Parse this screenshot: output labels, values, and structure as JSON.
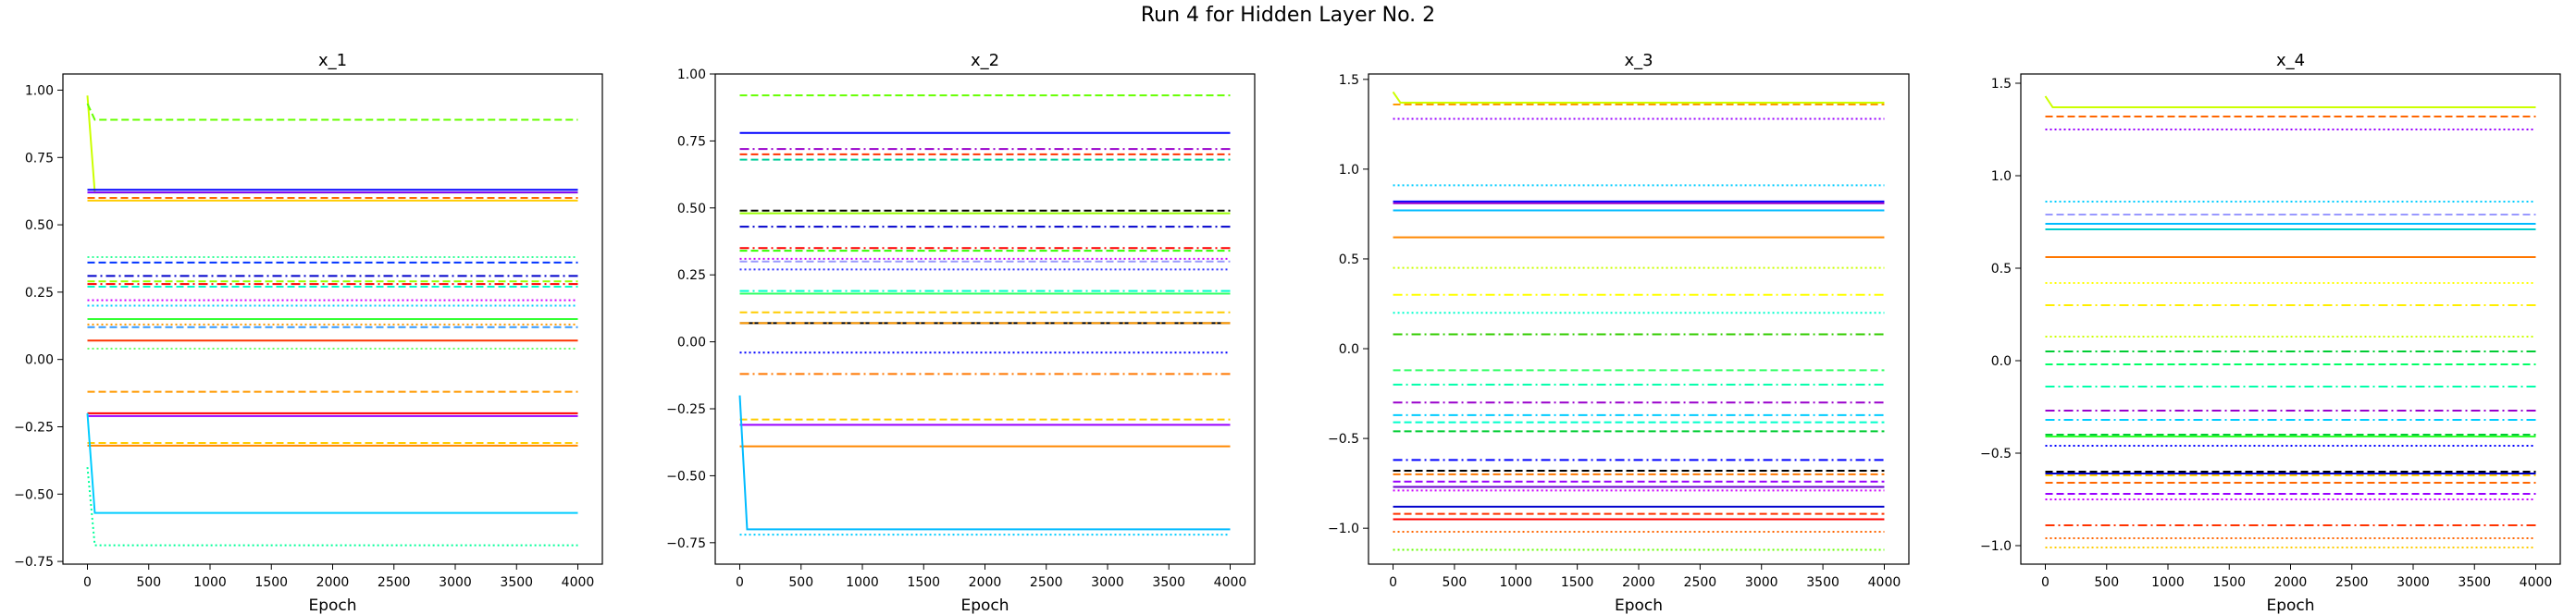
{
  "figure": {
    "suptitle": "Run 4 for Hidden Layer No. 2"
  },
  "chart_data": [
    {
      "type": "line",
      "title": "x_1",
      "xlabel": "Epoch",
      "ylabel": "",
      "xlim": [
        -200,
        4200
      ],
      "ylim": [
        -0.76,
        1.06
      ],
      "xticks": [
        0,
        500,
        1000,
        1500,
        2000,
        2500,
        3000,
        3500,
        4000
      ],
      "yticks": [
        -0.75,
        -0.5,
        -0.25,
        0.0,
        0.25,
        0.5,
        0.75,
        1.0
      ],
      "ytick_labels": [
        "−0.75",
        "−0.50",
        "−0.25",
        "0.00",
        "0.25",
        "0.50",
        "0.75",
        "1.00"
      ],
      "grid": false,
      "series": [
        {
          "color": "#ccff00",
          "dash": "solid",
          "start": 0.98,
          "value": 0.62
        },
        {
          "color": "#66ff00",
          "dash": "dashed",
          "start": 0.95,
          "value": 0.89
        },
        {
          "color": "#0000ff",
          "dash": "solid",
          "start": 0.63,
          "value": 0.63
        },
        {
          "color": "#7f00ff",
          "dash": "solid",
          "start": 0.62,
          "value": 0.62
        },
        {
          "color": "#ff6600",
          "dash": "dashed",
          "start": 0.6,
          "value": 0.6
        },
        {
          "color": "#ffcc00",
          "dash": "solid",
          "start": 0.59,
          "value": 0.59
        },
        {
          "color": "#33ff99",
          "dash": "dotted",
          "start": 0.38,
          "value": 0.38
        },
        {
          "color": "#0033ff",
          "dash": "dashed",
          "start": 0.36,
          "value": 0.36
        },
        {
          "color": "#0000cc",
          "dash": "dashdot",
          "start": 0.31,
          "value": 0.31
        },
        {
          "color": "#99ff00",
          "dash": "dashed",
          "start": 0.29,
          "value": 0.29
        },
        {
          "color": "#ff0000",
          "dash": "dashdot",
          "start": 0.28,
          "value": 0.28
        },
        {
          "color": "#00ffcc",
          "dash": "dashed",
          "start": 0.27,
          "value": 0.27
        },
        {
          "color": "#cc00ff",
          "dash": "dotted",
          "start": 0.22,
          "value": 0.22
        },
        {
          "color": "#00ccff",
          "dash": "dotted",
          "start": 0.2,
          "value": 0.2
        },
        {
          "color": "#33ff33",
          "dash": "solid",
          "start": 0.15,
          "value": 0.15
        },
        {
          "color": "#ff9900",
          "dash": "dotted",
          "start": 0.13,
          "value": 0.13
        },
        {
          "color": "#3399ff",
          "dash": "dashed",
          "start": 0.12,
          "value": 0.12
        },
        {
          "color": "#ff3300",
          "dash": "solid",
          "start": 0.07,
          "value": 0.07
        },
        {
          "color": "#66ff66",
          "dash": "dotted",
          "start": 0.04,
          "value": 0.04
        },
        {
          "color": "#ff9900",
          "dash": "dashed",
          "start": -0.12,
          "value": -0.12
        },
        {
          "color": "#ff0000",
          "dash": "solid",
          "start": -0.2,
          "value": -0.2
        },
        {
          "color": "#9900ff",
          "dash": "solid",
          "start": -0.21,
          "value": -0.21
        },
        {
          "color": "#ffcc00",
          "dash": "dashed",
          "start": -0.31,
          "value": -0.31
        },
        {
          "color": "#ff8800",
          "dash": "solid",
          "start": -0.32,
          "value": -0.32
        },
        {
          "color": "#00ccff",
          "dash": "solid",
          "start": -0.2,
          "value": -0.57
        },
        {
          "color": "#00ff99",
          "dash": "dotted",
          "start": -0.4,
          "value": -0.69
        }
      ]
    },
    {
      "type": "line",
      "title": "x_2",
      "xlabel": "Epoch",
      "ylabel": "",
      "xlim": [
        -200,
        4200
      ],
      "ylim": [
        -0.83,
        1.0
      ],
      "xticks": [
        0,
        500,
        1000,
        1500,
        2000,
        2500,
        3000,
        3500,
        4000
      ],
      "yticks": [
        -0.75,
        -0.5,
        -0.25,
        0.0,
        0.25,
        0.5,
        0.75,
        1.0
      ],
      "ytick_labels": [
        "−0.75",
        "−0.50",
        "−0.25",
        "0.00",
        "0.25",
        "0.50",
        "0.75",
        "1.00"
      ],
      "grid": false,
      "series": [
        {
          "color": "#66ff00",
          "dash": "dashed",
          "start": 0.92,
          "value": 0.92
        },
        {
          "color": "#0000ff",
          "dash": "solid",
          "start": 0.78,
          "value": 0.78
        },
        {
          "color": "#9900cc",
          "dash": "dashdot",
          "start": 0.72,
          "value": 0.72
        },
        {
          "color": "#ff3300",
          "dash": "dashed",
          "start": 0.7,
          "value": 0.7
        },
        {
          "color": "#00cc99",
          "dash": "dashed",
          "start": 0.68,
          "value": 0.68
        },
        {
          "color": "#000000",
          "dash": "dashed",
          "start": 0.49,
          "value": 0.49
        },
        {
          "color": "#99ff00",
          "dash": "solid",
          "start": 0.48,
          "value": 0.48
        },
        {
          "color": "#0000cc",
          "dash": "dashdot",
          "start": 0.43,
          "value": 0.43
        },
        {
          "color": "#ff0000",
          "dash": "dashdot",
          "start": 0.35,
          "value": 0.35
        },
        {
          "color": "#33ff00",
          "dash": "dashed",
          "start": 0.34,
          "value": 0.34
        },
        {
          "color": "#cc00ff",
          "dash": "dotted",
          "start": 0.31,
          "value": 0.31
        },
        {
          "color": "#9999ff",
          "dash": "dashed",
          "start": 0.3,
          "value": 0.3
        },
        {
          "color": "#3333ff",
          "dash": "dotted",
          "start": 0.27,
          "value": 0.27
        },
        {
          "color": "#00ffcc",
          "dash": "dashdot",
          "start": 0.19,
          "value": 0.19
        },
        {
          "color": "#33ff66",
          "dash": "solid",
          "start": 0.18,
          "value": 0.18
        },
        {
          "color": "#ffcc00",
          "dash": "dashed",
          "start": 0.11,
          "value": 0.11
        },
        {
          "color": "#000000",
          "dash": "solid",
          "start": 0.07,
          "value": 0.07
        },
        {
          "color": "#ff9900",
          "dash": "dashdot",
          "start": 0.07,
          "value": 0.07
        },
        {
          "color": "#0000ff",
          "dash": "dotted",
          "start": -0.04,
          "value": -0.04
        },
        {
          "color": "#ff7700",
          "dash": "dashdot",
          "start": -0.12,
          "value": -0.12
        },
        {
          "color": "#ffcc00",
          "dash": "dashed",
          "start": -0.29,
          "value": -0.29
        },
        {
          "color": "#9900ff",
          "dash": "solid",
          "start": -0.31,
          "value": -0.31
        },
        {
          "color": "#ff8800",
          "dash": "solid",
          "start": -0.39,
          "value": -0.39
        },
        {
          "color": "#00bbff",
          "dash": "solid",
          "start": -0.2,
          "value": -0.7
        },
        {
          "color": "#00ccff",
          "dash": "dotted",
          "start": -0.72,
          "value": -0.72
        }
      ]
    },
    {
      "type": "line",
      "title": "x_3",
      "xlabel": "Epoch",
      "ylabel": "",
      "xlim": [
        -200,
        4200
      ],
      "ylim": [
        -1.2,
        1.53
      ],
      "xticks": [
        0,
        500,
        1000,
        1500,
        2000,
        2500,
        3000,
        3500,
        4000
      ],
      "yticks": [
        -1.0,
        -0.5,
        0.0,
        0.5,
        1.0,
        1.5
      ],
      "ytick_labels": [
        "−1.0",
        "−0.5",
        "0.0",
        "0.5",
        "1.0",
        "1.5"
      ],
      "grid": false,
      "series": [
        {
          "color": "#ccff00",
          "dash": "solid",
          "start": 1.43,
          "value": 1.37
        },
        {
          "color": "#ff9900",
          "dash": "dashed",
          "start": 1.36,
          "value": 1.36
        },
        {
          "color": "#9900ff",
          "dash": "dotted",
          "start": 1.28,
          "value": 1.28
        },
        {
          "color": "#00ccff",
          "dash": "dotted",
          "start": 0.91,
          "value": 0.91
        },
        {
          "color": "#0000ff",
          "dash": "solid",
          "start": 0.82,
          "value": 0.82
        },
        {
          "color": "#9900cc",
          "dash": "solid",
          "start": 0.81,
          "value": 0.81
        },
        {
          "color": "#00bbff",
          "dash": "solid",
          "start": 0.77,
          "value": 0.77
        },
        {
          "color": "#ff8800",
          "dash": "solid",
          "start": 0.62,
          "value": 0.62
        },
        {
          "color": "#ccff00",
          "dash": "dotted",
          "start": 0.45,
          "value": 0.45
        },
        {
          "color": "#ffff00",
          "dash": "dashdot",
          "start": 0.3,
          "value": 0.3
        },
        {
          "color": "#00ffcc",
          "dash": "dotted",
          "start": 0.2,
          "value": 0.2
        },
        {
          "color": "#33cc00",
          "dash": "dashdot",
          "start": 0.08,
          "value": 0.08
        },
        {
          "color": "#33ff66",
          "dash": "dashed",
          "start": -0.12,
          "value": -0.12
        },
        {
          "color": "#00ffaa",
          "dash": "dashdot",
          "start": -0.2,
          "value": -0.2
        },
        {
          "color": "#9900cc",
          "dash": "dashdot",
          "start": -0.3,
          "value": -0.3
        },
        {
          "color": "#00ccff",
          "dash": "dashdot",
          "start": -0.37,
          "value": -0.37
        },
        {
          "color": "#00ffcc",
          "dash": "dashed",
          "start": -0.41,
          "value": -0.41
        },
        {
          "color": "#00cc33",
          "dash": "dashed",
          "start": -0.46,
          "value": -0.46
        },
        {
          "color": "#0000ff",
          "dash": "dashdot",
          "start": -0.62,
          "value": -0.62
        },
        {
          "color": "#000000",
          "dash": "dashed",
          "start": -0.68,
          "value": -0.68
        },
        {
          "color": "#ff7700",
          "dash": "dashed",
          "start": -0.7,
          "value": -0.7
        },
        {
          "color": "#9900ff",
          "dash": "dashed",
          "start": -0.74,
          "value": -0.74
        },
        {
          "color": "#6600cc",
          "dash": "solid",
          "start": -0.77,
          "value": -0.77
        },
        {
          "color": "#cc00ff",
          "dash": "dotted",
          "start": -0.79,
          "value": -0.79
        },
        {
          "color": "#0000cc",
          "dash": "solid",
          "start": -0.88,
          "value": -0.88
        },
        {
          "color": "#ff3300",
          "dash": "dashed",
          "start": -0.92,
          "value": -0.92
        },
        {
          "color": "#ff0000",
          "dash": "solid",
          "start": -0.95,
          "value": -0.95
        },
        {
          "color": "#ff6600",
          "dash": "dotted",
          "start": -1.02,
          "value": -1.02
        },
        {
          "color": "#66ff00",
          "dash": "dotted",
          "start": -1.12,
          "value": -1.12
        }
      ]
    },
    {
      "type": "line",
      "title": "x_4",
      "xlabel": "Epoch",
      "ylabel": "",
      "xlim": [
        -200,
        4200
      ],
      "ylim": [
        -1.1,
        1.55
      ],
      "xticks": [
        0,
        500,
        1000,
        1500,
        2000,
        2500,
        3000,
        3500,
        4000
      ],
      "yticks": [
        -1.0,
        -0.5,
        0.0,
        0.5,
        1.0,
        1.5
      ],
      "ytick_labels": [
        "−1.0",
        "−0.5",
        "0.0",
        "0.5",
        "1.0",
        "1.5"
      ],
      "grid": false,
      "series": [
        {
          "color": "#ccff00",
          "dash": "solid",
          "start": 1.43,
          "value": 1.37
        },
        {
          "color": "#ff6600",
          "dash": "dashed",
          "start": 1.32,
          "value": 1.32
        },
        {
          "color": "#9900ff",
          "dash": "dotted",
          "start": 1.25,
          "value": 1.25
        },
        {
          "color": "#00ccff",
          "dash": "dotted",
          "start": 0.86,
          "value": 0.86
        },
        {
          "color": "#9999ff",
          "dash": "dashed",
          "start": 0.79,
          "value": 0.79
        },
        {
          "color": "#00bbff",
          "dash": "solid",
          "start": 0.74,
          "value": 0.74
        },
        {
          "color": "#00cccc",
          "dash": "solid",
          "start": 0.71,
          "value": 0.71
        },
        {
          "color": "#ff7700",
          "dash": "solid",
          "start": 0.56,
          "value": 0.56
        },
        {
          "color": "#ffff00",
          "dash": "dotted",
          "start": 0.42,
          "value": 0.42
        },
        {
          "color": "#ffee00",
          "dash": "dashdot",
          "start": 0.3,
          "value": 0.3
        },
        {
          "color": "#ccff00",
          "dash": "dotted",
          "start": 0.13,
          "value": 0.13
        },
        {
          "color": "#00cc33",
          "dash": "dashdot",
          "start": 0.05,
          "value": 0.05
        },
        {
          "color": "#00ff66",
          "dash": "dashed",
          "start": -0.02,
          "value": -0.02
        },
        {
          "color": "#00ffaa",
          "dash": "dashdot",
          "start": -0.14,
          "value": -0.14
        },
        {
          "color": "#9900cc",
          "dash": "dashdot",
          "start": -0.27,
          "value": -0.27
        },
        {
          "color": "#00ccff",
          "dash": "dashdot",
          "start": -0.32,
          "value": -0.32
        },
        {
          "color": "#00cc33",
          "dash": "dashed",
          "start": -0.4,
          "value": -0.4
        },
        {
          "color": "#33ff33",
          "dash": "solid",
          "start": -0.41,
          "value": -0.41
        },
        {
          "color": "#0000ff",
          "dash": "dotted",
          "start": -0.46,
          "value": -0.46
        },
        {
          "color": "#000000",
          "dash": "dashed",
          "start": -0.6,
          "value": -0.6
        },
        {
          "color": "#0000cc",
          "dash": "solid",
          "start": -0.61,
          "value": -0.61
        },
        {
          "color": "#ffcc00",
          "dash": "dashed",
          "start": -0.62,
          "value": -0.62
        },
        {
          "color": "#ff6600",
          "dash": "dashed",
          "start": -0.66,
          "value": -0.66
        },
        {
          "color": "#9900ff",
          "dash": "dashed",
          "start": -0.72,
          "value": -0.72
        },
        {
          "color": "#cc00ff",
          "dash": "dotted",
          "start": -0.75,
          "value": -0.75
        },
        {
          "color": "#ff3300",
          "dash": "dashdot",
          "start": -0.89,
          "value": -0.89
        },
        {
          "color": "#ff6600",
          "dash": "dotted",
          "start": -0.96,
          "value": -0.96
        },
        {
          "color": "#ffcc00",
          "dash": "dotted",
          "start": -1.01,
          "value": -1.01
        }
      ]
    }
  ]
}
